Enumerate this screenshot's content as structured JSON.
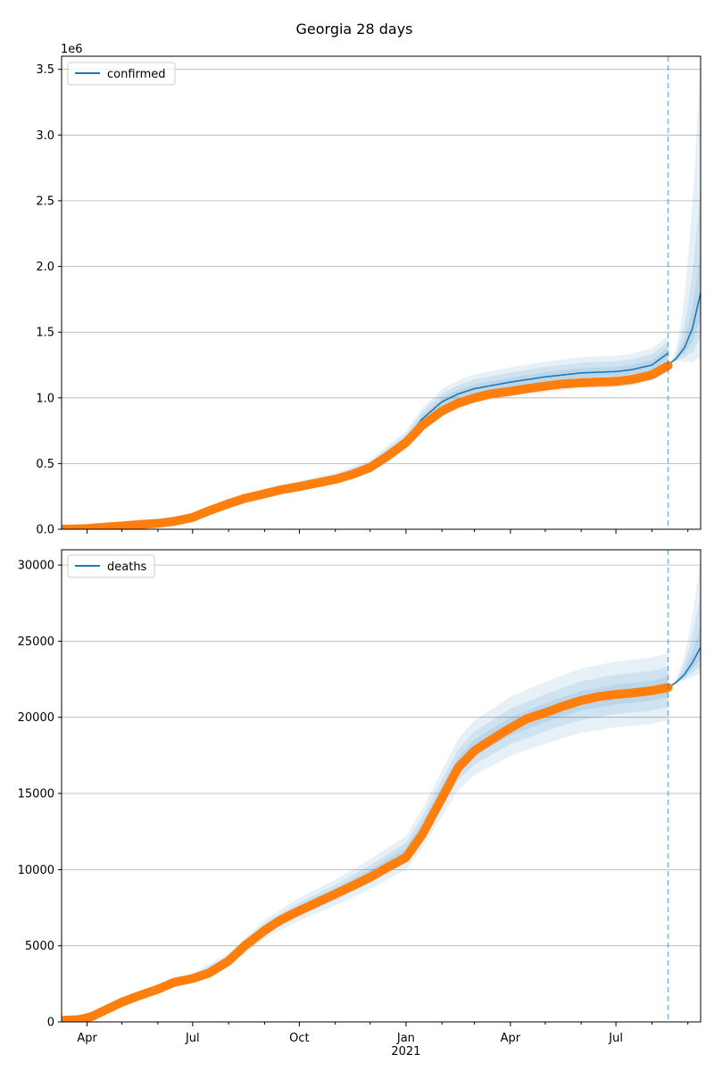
{
  "chart_data": {
    "title": "Georgia 28 days",
    "type": "line",
    "x_axis": {
      "type": "date",
      "range": [
        "2020-03-10",
        "2021-09-12"
      ],
      "tick_labels": [
        {
          "date": "2020-04-01",
          "label": "Apr"
        },
        {
          "date": "2020-07-01",
          "label": "Jul"
        },
        {
          "date": "2020-10-01",
          "label": "Oct"
        },
        {
          "date": "2021-01-01",
          "label": "Jan",
          "sublabel": "2021"
        },
        {
          "date": "2021-04-01",
          "label": "Apr"
        },
        {
          "date": "2021-07-01",
          "label": "Jul"
        }
      ],
      "forecast_start": "2021-08-15"
    },
    "panels": [
      {
        "id": "confirmed",
        "legend": "confirmed",
        "legend_position": "top-left",
        "offset_text": "1e6",
        "y_range": [
          0,
          3.6
        ],
        "y_ticks": [
          0,
          0.5,
          1.0,
          1.5,
          2.0,
          2.5,
          3.0,
          3.5
        ],
        "y_tick_labels": [
          "0.0",
          "0.5",
          "1.0",
          "1.5",
          "2.0",
          "2.5",
          "3.0",
          "3.5"
        ],
        "grid": "horizontal",
        "observed": [
          [
            "2020-03-10",
            0.0
          ],
          [
            "2020-04-01",
            0.005
          ],
          [
            "2020-04-15",
            0.015
          ],
          [
            "2020-05-01",
            0.025
          ],
          [
            "2020-05-15",
            0.035
          ],
          [
            "2020-06-01",
            0.045
          ],
          [
            "2020-06-15",
            0.06
          ],
          [
            "2020-07-01",
            0.09
          ],
          [
            "2020-07-15",
            0.14
          ],
          [
            "2020-08-01",
            0.195
          ],
          [
            "2020-08-15",
            0.235
          ],
          [
            "2020-09-01",
            0.27
          ],
          [
            "2020-09-15",
            0.3
          ],
          [
            "2020-10-01",
            0.325
          ],
          [
            "2020-10-15",
            0.35
          ],
          [
            "2020-11-01",
            0.38
          ],
          [
            "2020-11-15",
            0.415
          ],
          [
            "2020-12-01",
            0.47
          ],
          [
            "2020-12-15",
            0.55
          ],
          [
            "2021-01-01",
            0.66
          ],
          [
            "2021-01-15",
            0.79
          ],
          [
            "2021-02-01",
            0.9
          ],
          [
            "2021-02-15",
            0.96
          ],
          [
            "2021-03-01",
            1.0
          ],
          [
            "2021-03-15",
            1.03
          ],
          [
            "2021-04-01",
            1.05
          ],
          [
            "2021-04-15",
            1.07
          ],
          [
            "2021-05-01",
            1.09
          ],
          [
            "2021-05-15",
            1.105
          ],
          [
            "2021-06-01",
            1.115
          ],
          [
            "2021-06-15",
            1.12
          ],
          [
            "2021-07-01",
            1.125
          ],
          [
            "2021-07-15",
            1.14
          ],
          [
            "2021-08-01",
            1.175
          ],
          [
            "2021-08-15",
            1.245
          ]
        ],
        "fit": [
          [
            "2020-03-10",
            0.0
          ],
          [
            "2020-04-15",
            0.015
          ],
          [
            "2020-06-01",
            0.045
          ],
          [
            "2020-07-01",
            0.09
          ],
          [
            "2020-08-01",
            0.2
          ],
          [
            "2020-09-01",
            0.28
          ],
          [
            "2020-10-01",
            0.335
          ],
          [
            "2020-11-01",
            0.39
          ],
          [
            "2020-12-01",
            0.48
          ],
          [
            "2021-01-01",
            0.68
          ],
          [
            "2021-01-15",
            0.84
          ],
          [
            "2021-02-01",
            0.97
          ],
          [
            "2021-02-15",
            1.03
          ],
          [
            "2021-03-01",
            1.07
          ],
          [
            "2021-04-01",
            1.12
          ],
          [
            "2021-05-01",
            1.16
          ],
          [
            "2021-06-01",
            1.19
          ],
          [
            "2021-07-01",
            1.2
          ],
          [
            "2021-07-15",
            1.215
          ],
          [
            "2021-08-01",
            1.25
          ],
          [
            "2021-08-15",
            1.34
          ]
        ],
        "forecast": [
          [
            "2021-08-15",
            1.25
          ],
          [
            "2021-08-22",
            1.3
          ],
          [
            "2021-08-29",
            1.38
          ],
          [
            "2021-09-05",
            1.53
          ],
          [
            "2021-09-12",
            1.8
          ]
        ],
        "uncertainty_bands": [
          {
            "width": 0.03,
            "forecast_upper_end": 2.1,
            "forecast_lower_end": 1.6
          },
          {
            "width": 0.065,
            "forecast_upper_end": 2.6,
            "forecast_lower_end": 1.45
          },
          {
            "width": 0.1,
            "forecast_upper_end": 3.6,
            "forecast_lower_end": 1.3
          }
        ]
      },
      {
        "id": "deaths",
        "legend": "deaths",
        "legend_position": "top-left",
        "y_range": [
          0,
          31000
        ],
        "y_ticks": [
          0,
          5000,
          10000,
          15000,
          20000,
          25000,
          30000
        ],
        "y_tick_labels": [
          "0",
          "5000",
          "10000",
          "15000",
          "20000",
          "25000",
          "30000"
        ],
        "grid": "horizontal",
        "observed": [
          [
            "2020-03-10",
            100
          ],
          [
            "2020-03-25",
            150
          ],
          [
            "2020-04-05",
            350
          ],
          [
            "2020-04-20",
            900
          ],
          [
            "2020-05-01",
            1300
          ],
          [
            "2020-05-15",
            1700
          ],
          [
            "2020-06-01",
            2150
          ],
          [
            "2020-06-15",
            2600
          ],
          [
            "2020-07-01",
            2850
          ],
          [
            "2020-07-15",
            3200
          ],
          [
            "2020-08-01",
            4000
          ],
          [
            "2020-08-15",
            5000
          ],
          [
            "2020-09-01",
            6000
          ],
          [
            "2020-09-15",
            6700
          ],
          [
            "2020-10-01",
            7300
          ],
          [
            "2020-10-15",
            7800
          ],
          [
            "2020-11-01",
            8400
          ],
          [
            "2020-11-15",
            8900
          ],
          [
            "2020-12-01",
            9500
          ],
          [
            "2020-12-15",
            10100
          ],
          [
            "2021-01-01",
            10800
          ],
          [
            "2021-01-15",
            12300
          ],
          [
            "2021-02-01",
            14700
          ],
          [
            "2021-02-15",
            16700
          ],
          [
            "2021-03-01",
            17800
          ],
          [
            "2021-03-15",
            18500
          ],
          [
            "2021-04-01",
            19300
          ],
          [
            "2021-04-15",
            19900
          ],
          [
            "2021-05-01",
            20300
          ],
          [
            "2021-05-15",
            20700
          ],
          [
            "2021-06-01",
            21100
          ],
          [
            "2021-06-15",
            21350
          ],
          [
            "2021-07-01",
            21500
          ],
          [
            "2021-07-15",
            21600
          ],
          [
            "2021-08-01",
            21750
          ],
          [
            "2021-08-15",
            21950
          ]
        ],
        "fit": [
          [
            "2020-03-10",
            100
          ],
          [
            "2020-04-05",
            350
          ],
          [
            "2020-05-01",
            1350
          ],
          [
            "2020-06-01",
            2200
          ],
          [
            "2020-07-01",
            2900
          ],
          [
            "2020-08-01",
            4100
          ],
          [
            "2020-09-01",
            6100
          ],
          [
            "2020-10-01",
            7400
          ],
          [
            "2020-11-01",
            8500
          ],
          [
            "2020-12-01",
            9700
          ],
          [
            "2021-01-01",
            11100
          ],
          [
            "2021-01-15",
            12700
          ],
          [
            "2021-02-01",
            15000
          ],
          [
            "2021-02-15",
            16900
          ],
          [
            "2021-03-01",
            18000
          ],
          [
            "2021-04-01",
            19400
          ],
          [
            "2021-05-01",
            20300
          ],
          [
            "2021-06-01",
            21100
          ],
          [
            "2021-07-01",
            21500
          ],
          [
            "2021-08-01",
            21750
          ],
          [
            "2021-08-15",
            22000
          ]
        ],
        "forecast": [
          [
            "2021-08-15",
            21950
          ],
          [
            "2021-08-22",
            22300
          ],
          [
            "2021-08-29",
            22800
          ],
          [
            "2021-09-05",
            23600
          ],
          [
            "2021-09-12",
            24600
          ]
        ],
        "uncertainty_bands": [
          {
            "width": 0.03,
            "forecast_upper_end": 26000,
            "forecast_lower_end": 23800
          },
          {
            "width": 0.06,
            "forecast_upper_end": 28000,
            "forecast_lower_end": 23300
          },
          {
            "width": 0.1,
            "forecast_upper_end": 30500,
            "forecast_lower_end": 22800
          }
        ]
      }
    ],
    "colors": {
      "fit_line": "#1f77b4",
      "observed": "#ff7f0e",
      "band": "#1f77b4",
      "forecast_marker": "#1f77b4",
      "grid": "#b0b0b0"
    }
  }
}
